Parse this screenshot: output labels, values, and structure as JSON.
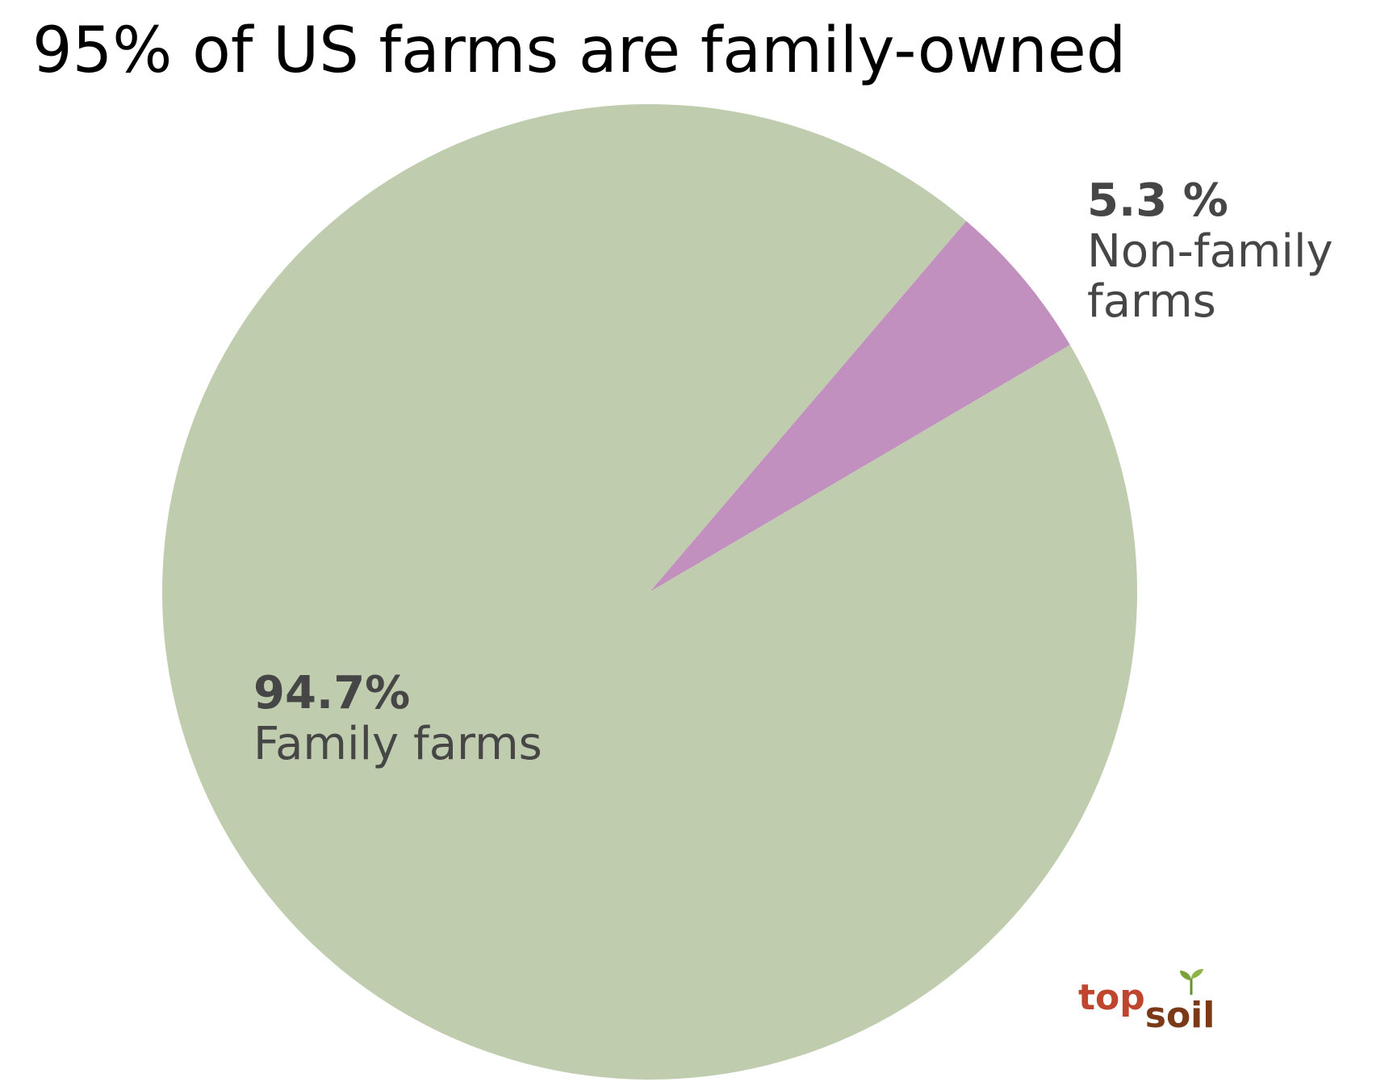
{
  "title": "95% of US farms are family-owned",
  "colors": {
    "family": "#bfcdae",
    "non_family": "#c290bf",
    "label_text": "#464646",
    "title_text": "#000000"
  },
  "chart_data": {
    "type": "pie",
    "title": "95% of US farms are family-owned",
    "slices": [
      {
        "label": "Non-family farms",
        "value": 5.3,
        "value_label": "5.3 %",
        "color": "#c290bf"
      },
      {
        "label": "Family farms",
        "value": 94.7,
        "value_label": "94.7%",
        "color": "#bfcdae"
      }
    ],
    "legend": "none"
  },
  "labels": {
    "non_family_pct": "5.3 %",
    "non_family_name_line1": "Non-family",
    "non_family_name_line2": "farms",
    "family_pct": "94.7%",
    "family_name": "Family farms"
  },
  "logo": {
    "text_top": "top",
    "text_soil": "soil",
    "icon": "sprout-icon"
  }
}
